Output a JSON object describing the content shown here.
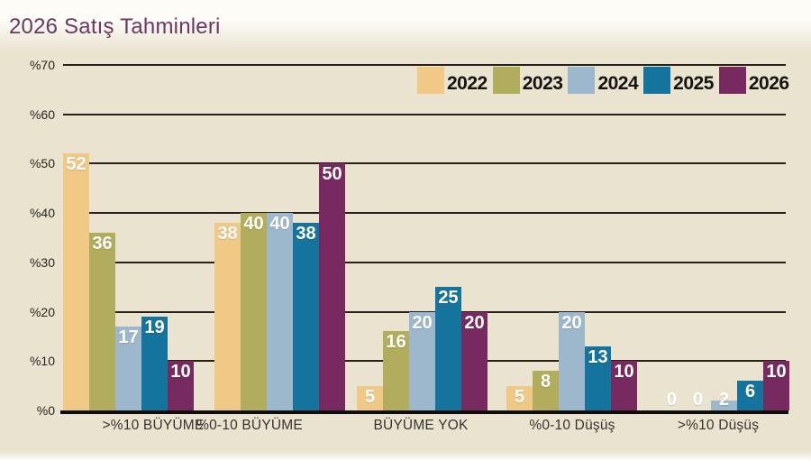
{
  "title": "2026 Satış Tahminleri",
  "colors": {
    "panel_background": "#e9e3d0",
    "title": "#6b3862",
    "gridline": "#25221c",
    "bar_value_text": "#ffffff"
  },
  "chart_data": {
    "type": "bar",
    "title": "2026 Satış Tahminleri",
    "categories": [
      ">%10 BÜYÜME",
      "%0-10 BÜYÜME",
      "BÜYÜME YOK",
      "%0-10 Düşüş",
      ">%10 Düşüş"
    ],
    "series": [
      {
        "name": "2022",
        "color": "#f0c987",
        "values": [
          52,
          38,
          5,
          5,
          0
        ]
      },
      {
        "name": "2023",
        "color": "#b1ad5d",
        "values": [
          36,
          40,
          16,
          8,
          0
        ]
      },
      {
        "name": "2024",
        "color": "#9db7cd",
        "values": [
          17,
          40,
          20,
          20,
          2
        ]
      },
      {
        "name": "2025",
        "color": "#15749d",
        "values": [
          19,
          38,
          25,
          13,
          6
        ]
      },
      {
        "name": "2026",
        "color": "#772a60",
        "values": [
          10,
          50,
          20,
          10,
          10
        ]
      }
    ],
    "yticks": [
      "%70",
      "%60",
      "%50",
      "%40",
      "%30",
      "%20",
      "%10",
      "%0"
    ],
    "ylim": [
      0,
      70
    ],
    "ytick_step": 10,
    "grid": true,
    "legend_position": "top-right",
    "value_labels": "inside-top, white bold"
  }
}
